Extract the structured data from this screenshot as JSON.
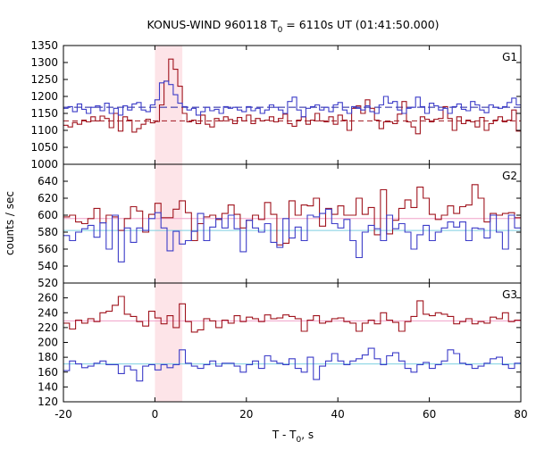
{
  "chart_data": {
    "type": "line",
    "title_main": "KONUS-WIND 960118 T",
    "title_sub": "0",
    "title_rest": " = 6110s UT (01:41:50.000)",
    "xlabel_main": "T - T",
    "xlabel_sub": "0",
    "xlabel_rest": ", s",
    "ylabel": "counts / sec",
    "xlim": [
      -20,
      80
    ],
    "x_ticks": [
      "-20",
      "0",
      "20",
      "40",
      "60",
      "80"
    ],
    "highlight_interval": [
      0,
      6
    ],
    "colors": {
      "red": "#a0141e",
      "blue": "#3c3cc8",
      "cyan": "#7ecfe0",
      "pink": "#f0a0c8",
      "darkred": "#a0141e",
      "navy": "#1e1ea0",
      "shade": "#fde4e8"
    },
    "panels": [
      {
        "label": "G1",
        "ylim": [
          1000,
          1350
        ],
        "y_ticks": [
          "1350",
          "1300",
          "1250",
          "1200",
          "1150",
          "1100",
          "1050",
          "1000"
        ],
        "red_bg": 1128,
        "blue_bg": 1168,
        "red_line": "darkred",
        "blue_line": "navy"
      },
      {
        "label": "G2",
        "ylim": [
          520,
          660
        ],
        "y_ticks": [
          "640",
          "620",
          "600",
          "580",
          "560",
          "540",
          "520"
        ],
        "red_bg": 596,
        "blue_bg": 582,
        "red_line": "pink",
        "blue_line": "cyan"
      },
      {
        "label": "G3",
        "ylim": [
          120,
          280
        ],
        "y_ticks": [
          "260",
          "240",
          "220",
          "200",
          "180",
          "160",
          "140",
          "120"
        ],
        "red_bg": 229,
        "blue_bg": 171,
        "red_line": "pink",
        "blue_line": "cyan"
      }
    ],
    "series": [
      {
        "panel": 0,
        "color": "red",
        "x_start": -20,
        "step": 1,
        "values": [
          1115,
          1110,
          1123,
          1118,
          1130,
          1125,
          1140,
          1128,
          1142,
          1135,
          1108,
          1150,
          1098,
          1140,
          1130,
          1095,
          1105,
          1118,
          1133,
          1122,
          1126,
          1175,
          1245,
          1310,
          1280,
          1230,
          1150,
          1125,
          1130,
          1120,
          1145,
          1118,
          1110,
          1135,
          1128,
          1140,
          1132,
          1120,
          1138,
          1128,
          1145,
          1120,
          1135,
          1128,
          1130,
          1140,
          1125,
          1135,
          1148,
          1120,
          1112,
          1130,
          1140,
          1118,
          1130,
          1150,
          1128,
          1125,
          1140,
          1118,
          1145,
          1130,
          1100,
          1165,
          1172,
          1150,
          1190,
          1165,
          1130,
          1105,
          1125,
          1125,
          1120,
          1148,
          1185,
          1125,
          1110,
          1090,
          1140,
          1133,
          1125,
          1133,
          1135,
          1170,
          1135,
          1100,
          1140,
          1120,
          1130,
          1125,
          1110,
          1138,
          1100,
          1120,
          1130,
          1140,
          1125,
          1130,
          1160,
          1098
        ]
      },
      {
        "panel": 0,
        "color": "blue",
        "x_start": -20,
        "step": 1,
        "values": [
          1165,
          1170,
          1155,
          1178,
          1162,
          1150,
          1168,
          1172,
          1158,
          1180,
          1150,
          1165,
          1145,
          1172,
          1160,
          1178,
          1182,
          1160,
          1155,
          1175,
          1190,
          1240,
          1245,
          1235,
          1205,
          1180,
          1170,
          1160,
          1165,
          1145,
          1155,
          1168,
          1158,
          1162,
          1150,
          1170,
          1165,
          1168,
          1160,
          1155,
          1170,
          1158,
          1165,
          1150,
          1160,
          1175,
          1168,
          1160,
          1150,
          1185,
          1198,
          1160,
          1140,
          1165,
          1170,
          1175,
          1160,
          1168,
          1155,
          1175,
          1182,
          1160,
          1150,
          1170,
          1165,
          1160,
          1172,
          1155,
          1150,
          1175,
          1200,
          1180,
          1185,
          1160,
          1150,
          1165,
          1168,
          1198,
          1170,
          1150,
          1180,
          1172,
          1160,
          1165,
          1150,
          1170,
          1178,
          1162,
          1158,
          1185,
          1175,
          1160,
          1152,
          1175,
          1168,
          1165,
          1170,
          1182,
          1195,
          1175
        ]
      },
      {
        "panel": 1,
        "color": "red",
        "x_start": -20,
        "step": 1.333,
        "values": [
          598,
          600,
          592,
          590,
          596,
          608,
          591,
          600,
          598,
          582,
          596,
          610,
          605,
          580,
          601,
          614,
          597,
          597,
          607,
          617,
          603,
          570,
          590,
          598,
          600,
          595,
          602,
          612,
          601,
          585,
          594,
          600,
          595,
          615,
          601,
          565,
          567,
          617,
          600,
          612,
          611,
          620,
          587,
          608,
          601,
          611,
          600,
          600,
          620,
          601,
          609,
          577,
          630,
          578,
          594,
          608,
          618,
          609,
          633,
          620,
          601,
          595,
          600,
          611,
          602,
          610,
          612,
          636,
          620,
          592,
          602,
          600,
          602,
          603,
          597
        ]
      },
      {
        "panel": 1,
        "color": "blue",
        "x_start": -20,
        "step": 1.333,
        "values": [
          576,
          570,
          580,
          584,
          588,
          574,
          591,
          560,
          600,
          545,
          585,
          568,
          585,
          582,
          596,
          603,
          585,
          558,
          581,
          566,
          570,
          581,
          602,
          570,
          586,
          596,
          585,
          600,
          584,
          557,
          594,
          585,
          580,
          590,
          568,
          562,
          596,
          573,
          586,
          570,
          600,
          598,
          602,
          607,
          590,
          585,
          595,
          570,
          550,
          580,
          588,
          584,
          570,
          600,
          584,
          590,
          580,
          560,
          577,
          588,
          570,
          580,
          585,
          592,
          586,
          592,
          570,
          585,
          584,
          573,
          600,
          580,
          560,
          600,
          585
        ]
      },
      {
        "panel": 2,
        "color": "red",
        "x_start": -20,
        "step": 1.333,
        "values": [
          226,
          218,
          230,
          226,
          232,
          228,
          240,
          242,
          250,
          262,
          238,
          235,
          228,
          222,
          242,
          233,
          225,
          236,
          220,
          252,
          228,
          214,
          217,
          232,
          229,
          220,
          230,
          226,
          236,
          228,
          234,
          232,
          228,
          237,
          232,
          233,
          237,
          235,
          232,
          215,
          230,
          236,
          226,
          228,
          232,
          233,
          228,
          226,
          215,
          226,
          230,
          225,
          240,
          230,
          227,
          215,
          228,
          235,
          256,
          238,
          236,
          240,
          238,
          235,
          225,
          228,
          232,
          225,
          228,
          226,
          234,
          232,
          240,
          228,
          230
        ]
      },
      {
        "panel": 2,
        "color": "blue",
        "x_start": -20,
        "step": 1.333,
        "values": [
          162,
          175,
          171,
          166,
          168,
          172,
          175,
          170,
          170,
          158,
          168,
          163,
          148,
          168,
          170,
          163,
          170,
          166,
          170,
          190,
          172,
          168,
          165,
          170,
          175,
          168,
          172,
          172,
          168,
          160,
          170,
          175,
          165,
          182,
          175,
          172,
          170,
          178,
          165,
          160,
          180,
          150,
          168,
          175,
          185,
          175,
          170,
          175,
          178,
          183,
          192,
          178,
          170,
          182,
          186,
          175,
          165,
          160,
          170,
          173,
          165,
          170,
          175,
          190,
          185,
          172,
          170,
          165,
          168,
          172,
          178,
          180,
          170,
          165,
          172
        ]
      }
    ]
  }
}
